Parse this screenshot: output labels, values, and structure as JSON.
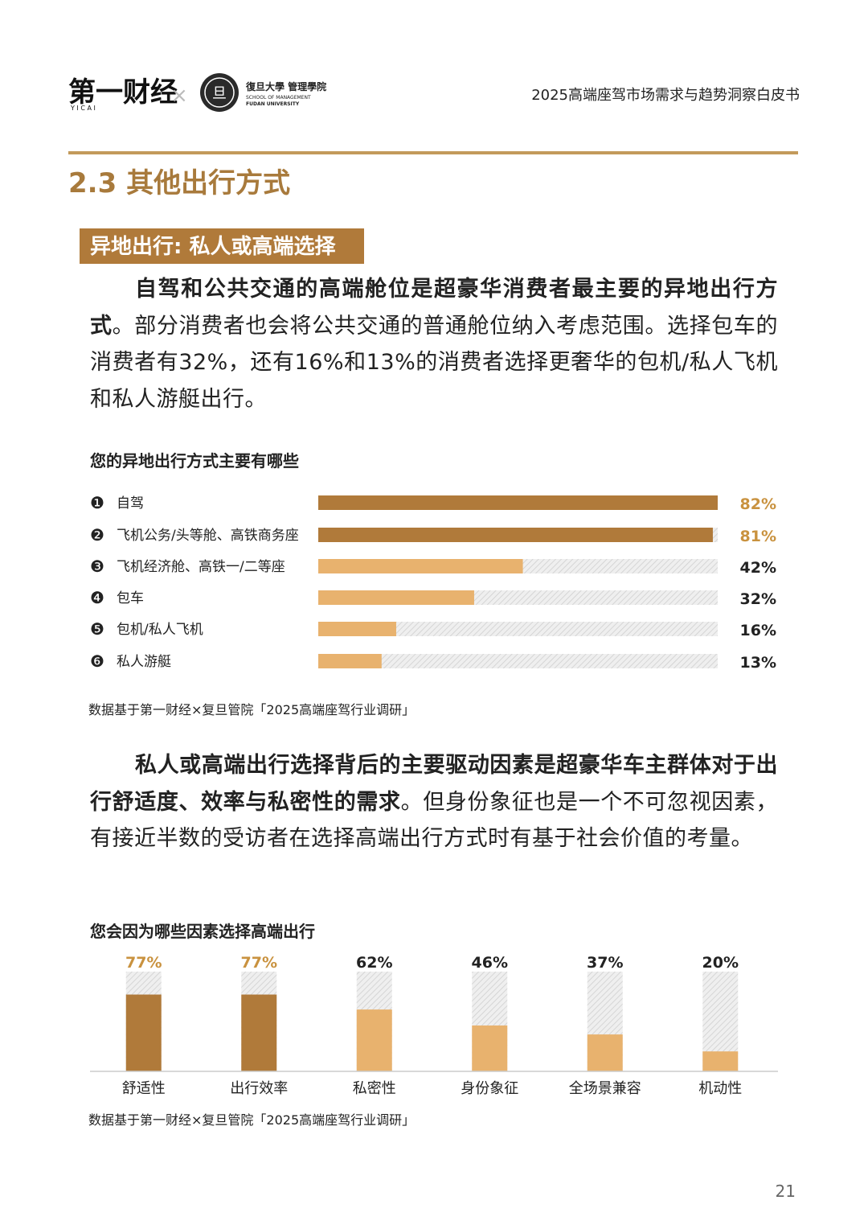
{
  "header": {
    "logo": "第一财经",
    "logo_sub": "Y I C A I",
    "times": "×",
    "partner_seal": "旦",
    "partner": "復旦大學 管理學院",
    "partner_en1": "SCHOOL OF MANAGEMENT",
    "partner_en2": "FUDAN UNIVERSITY",
    "report_title": "2025高端座驾市场需求与趋势洞察白皮书"
  },
  "section_title": "2.3 其他出行方式",
  "subsection_title": "异地出行: 私人或高端选择",
  "paragraph1": {
    "bold": "自驾和公共交通的高端舱位是超豪华消费者最主要的异地出行方式",
    "text": "。部分消费者也会将公共交通的普通舱位纳入考虑范围。选择包车的消费者有32%，还有16%和13%的消费者选择更奢华的包机/私人飞机和私人游艇出行。"
  },
  "chart_data": [
    {
      "type": "hbar",
      "title": "您的异地出行方式主要有哪些",
      "markers": [
        "❶",
        "❷",
        "❸",
        "❹",
        "❺",
        "❻"
      ],
      "categories": [
        "自驾",
        "飞机公务/头等舱、高铁商务座",
        "飞机经济舱、高铁一/二等座",
        "包车",
        "包机/私人飞机",
        "私人游艇"
      ],
      "values": [
        82,
        81,
        42,
        32,
        16,
        13
      ],
      "value_labels": [
        "82%",
        "81%",
        "42%",
        "32%",
        "16%",
        "13%"
      ],
      "colors": [
        "#b07a3a",
        "#b07a3a",
        "#e8b26e",
        "#e8b26e",
        "#e8b26e",
        "#e8b26e"
      ],
      "label_colors": [
        "#c9923f",
        "#c9923f",
        "#222222",
        "#222222",
        "#222222",
        "#222222"
      ],
      "xlim": [
        0,
        82
      ],
      "note": "数据基于第一财经×复旦管院「2025高端座驾行业调研」"
    },
    {
      "type": "bar",
      "title": "您会因为哪些因素选择高端出行",
      "categories": [
        "舒适性",
        "出行效率",
        "私密性",
        "身份象征",
        "全场景兼容",
        "机动性"
      ],
      "values": [
        77,
        77,
        62,
        46,
        37,
        20
      ],
      "value_labels": [
        "77%",
        "77%",
        "62%",
        "46%",
        "37%",
        "20%"
      ],
      "colors": [
        "#b07a3a",
        "#b07a3a",
        "#e8b26e",
        "#e8b26e",
        "#e8b26e",
        "#e8b26e"
      ],
      "label_colors": [
        "#c9923f",
        "#c9923f",
        "#222222",
        "#222222",
        "#222222",
        "#222222"
      ],
      "ylim": [
        0,
        100
      ],
      "note": "数据基于第一财经×复旦管院「2025高端座驾行业调研」"
    }
  ],
  "paragraph2": {
    "bold": "私人或高端出行选择背后的主要驱动因素是超豪华车主群体对于出行舒适度、效率与私密性的需求",
    "text": "。但身份象征也是一个不可忽视因素，有接近半数的受访者在选择高端出行方式时有基于社会价值的考量。"
  },
  "page_number": "21"
}
